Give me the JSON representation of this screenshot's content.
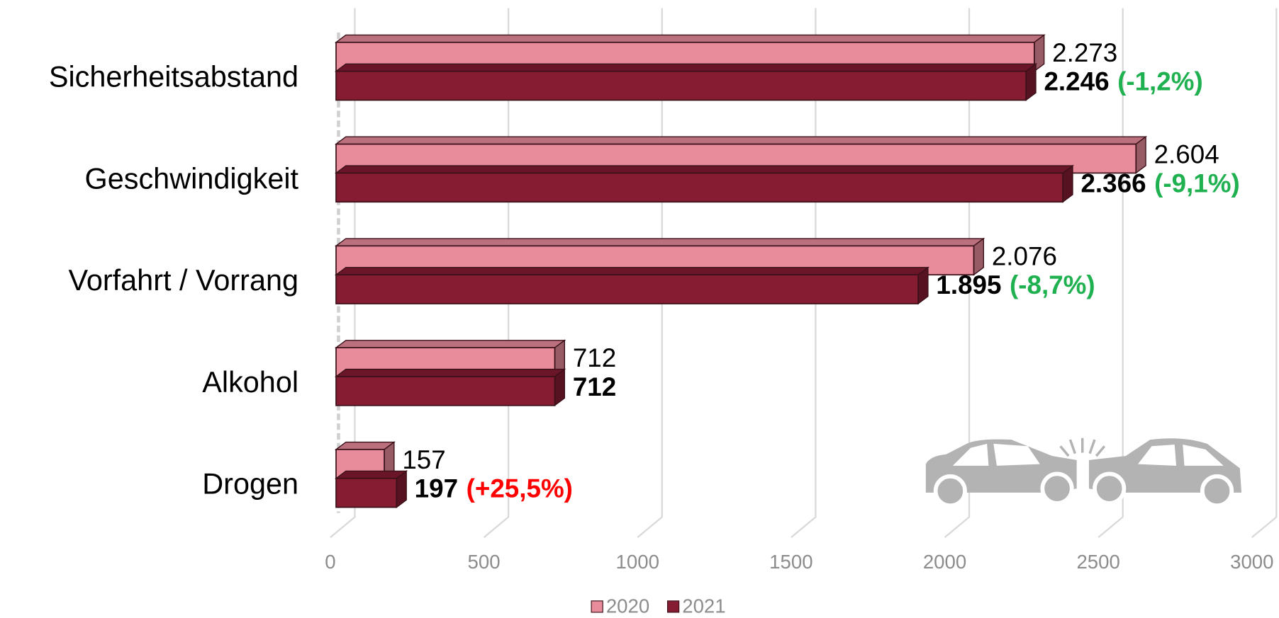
{
  "chart_data": {
    "type": "bar",
    "orientation": "horizontal",
    "categories": [
      "Sicherheitsabstand",
      "Geschwindigkeit",
      "Vorfahrt / Vorrang",
      "Alkohol",
      "Drogen"
    ],
    "series": [
      {
        "name": "2020",
        "color": "#e88c9c",
        "values": [
          2273,
          2604,
          2076,
          712,
          157
        ],
        "value_labels": [
          "2.273",
          "2.604",
          "2.076",
          "712",
          "157"
        ]
      },
      {
        "name": "2021",
        "color": "#861c32",
        "values": [
          2246,
          2366,
          1895,
          712,
          197
        ],
        "value_labels": [
          "2.246",
          "2.366",
          "1.895",
          "712",
          "197"
        ],
        "annotations": [
          "(-1,2%)",
          "(-9,1%)",
          "(-8,7%)",
          null,
          "(+25,5%)"
        ],
        "annotation_colors": [
          "#1fb050",
          "#1fb050",
          "#1fb050",
          null,
          "#ff0000"
        ]
      }
    ],
    "xlim": [
      0,
      3000
    ],
    "xticks": [
      0,
      500,
      1000,
      1500,
      2000,
      2500,
      3000
    ],
    "grid": true,
    "legend": "bottom"
  }
}
